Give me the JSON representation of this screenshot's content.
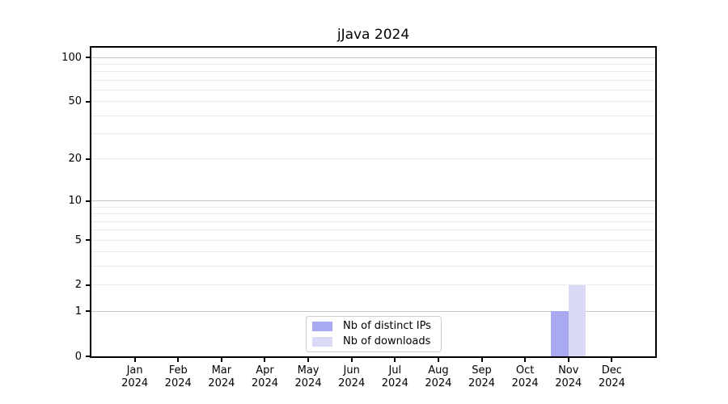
{
  "chart_data": {
    "type": "bar",
    "title": "jJava 2024",
    "categories": [
      "Jan 2024",
      "Feb 2024",
      "Mar 2024",
      "Apr 2024",
      "May 2024",
      "Jun 2024",
      "Jul 2024",
      "Aug 2024",
      "Sep 2024",
      "Oct 2024",
      "Nov 2024",
      "Dec 2024"
    ],
    "series": [
      {
        "name": "Nb of distinct IPs",
        "color": "#a9a9f2",
        "values": [
          0,
          0,
          0,
          0,
          0,
          0,
          0,
          0,
          0,
          0,
          1,
          0
        ]
      },
      {
        "name": "Nb of downloads",
        "color": "#dadaf7",
        "values": [
          0,
          0,
          0,
          0,
          0,
          0,
          0,
          0,
          0,
          0,
          2,
          0
        ]
      }
    ],
    "xlabel": "",
    "ylabel": "",
    "yticks": [
      0,
      1,
      2,
      5,
      10,
      20,
      50,
      100
    ],
    "yscale": "log1p",
    "ylim": [
      0,
      116
    ],
    "grid": "both",
    "legend_position": "bottom-center",
    "colors": {
      "axis": "#000000",
      "grid_major": "#c6c6c6",
      "grid_minor": "#ebebeb",
      "background": "#ffffff"
    }
  }
}
